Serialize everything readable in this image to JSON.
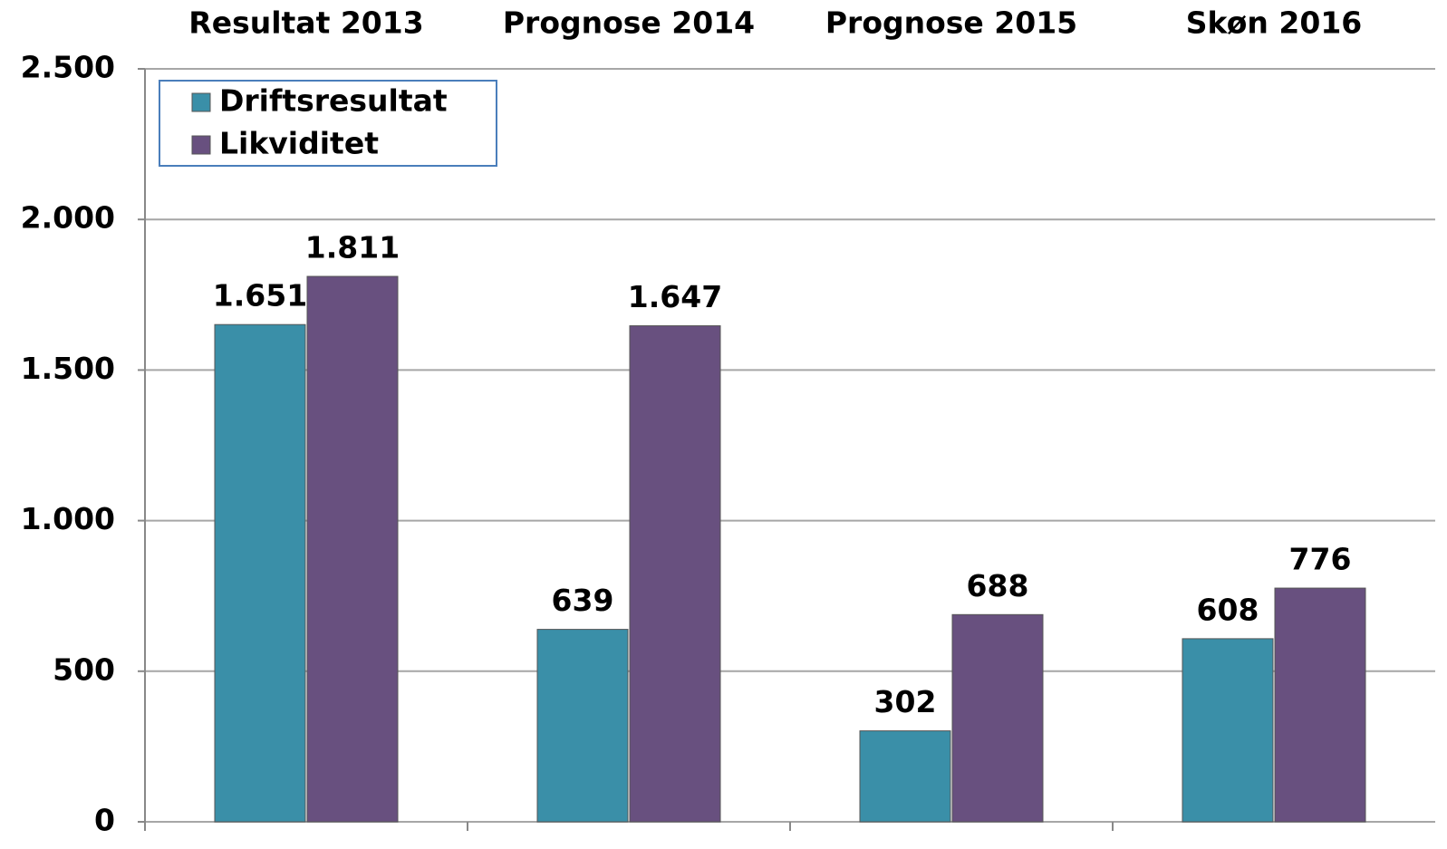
{
  "chart_data": {
    "type": "bar",
    "categories": [
      "Resultat 2013",
      "Prognose 2014",
      "Prognose 2015",
      "Skøn 2016"
    ],
    "series": [
      {
        "name": "Driftsresultat",
        "color": "#3a8fa8",
        "values": [
          1651,
          639,
          302,
          608
        ],
        "value_labels": [
          "1.651",
          "639",
          "302",
          "608"
        ]
      },
      {
        "name": "Likviditet",
        "color": "#68507f",
        "values": [
          1811,
          1647,
          688,
          776
        ],
        "value_labels": [
          "1.811",
          "1.647",
          "688",
          "776"
        ]
      }
    ],
    "ylim": [
      0,
      2500
    ],
    "yticks": [
      0,
      500,
      {
        "value": 1000,
        "label": "1.000"
      },
      {
        "value": 1500,
        "label": "1.500"
      },
      {
        "value": 2000,
        "label": "2.000"
      },
      {
        "value": 2500,
        "label": "2.500"
      }
    ],
    "grid": true,
    "legend": "upper left"
  }
}
